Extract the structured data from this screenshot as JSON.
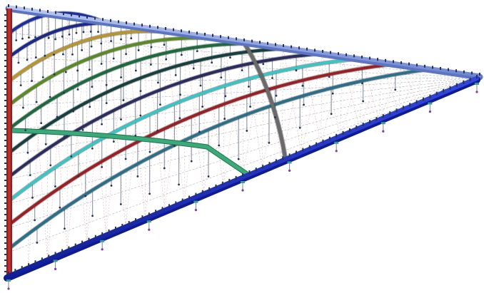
{
  "model": {
    "colors": {
      "top_chord": "#8aa2e0",
      "top_chord_edge": "#5d75c0",
      "left_column": "#b42a2a",
      "bottom_chord": "#1a2fc8",
      "bracing": "#d58a8a",
      "grid": "#9aa0a8",
      "hanger": "#7a8592",
      "node": "#27334f",
      "bearing": "#3d9c8e",
      "bracing_diag": "#cc7070"
    },
    "arches": [
      {
        "name": "arch-1",
        "color": "#1d2ea0"
      },
      {
        "name": "arch-2",
        "color": "#1b2a8a"
      },
      {
        "name": "arch-3",
        "color": "#b7962e"
      },
      {
        "name": "arch-4",
        "color": "#5a8a24"
      },
      {
        "name": "arch-5",
        "color": "#1c6a3e"
      },
      {
        "name": "arch-6",
        "color": "#163f3f"
      },
      {
        "name": "arch-7",
        "color": "#2a2d5e"
      },
      {
        "name": "arch-8",
        "color": "#39c4c6"
      },
      {
        "name": "arch-9",
        "color": "#9b2025"
      },
      {
        "name": "arch-10",
        "color": "#2c6f8a"
      }
    ],
    "diagonal_arch_color": "#6a6a6a",
    "tie_beam_color": "#3aaa78"
  }
}
